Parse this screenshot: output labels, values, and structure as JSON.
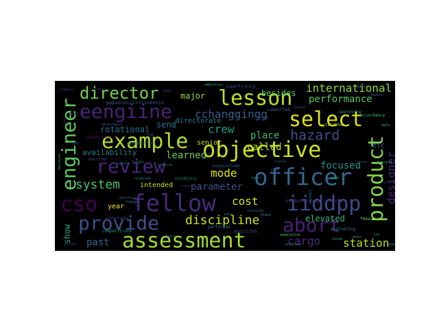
{
  "words": [
    {
      "text": "assessment",
      "color": "#a0da39"
    },
    {
      "text": "objective",
      "color": "#cbe11e"
    },
    {
      "text": "officer",
      "color": "#31678e"
    },
    {
      "text": "fellow",
      "color": "#472a7a"
    },
    {
      "text": "provide",
      "color": "#3b528b"
    },
    {
      "text": "example",
      "color": "#b5de2b"
    },
    {
      "text": "lesson",
      "color": "#c2df23"
    },
    {
      "text": "review",
      "color": "#482878"
    },
    {
      "text": "select",
      "color": "#dde318"
    },
    {
      "text": "eengiine",
      "color": "#482475"
    },
    {
      "text": "engineer",
      "color": "#5ec962"
    },
    {
      "text": "product",
      "color": "#84d44b"
    },
    {
      "text": "abort",
      "color": "#482173"
    },
    {
      "text": "iiddpp",
      "color": "#3e4a89"
    },
    {
      "text": "cso",
      "color": "#440154"
    },
    {
      "text": "director",
      "color": "#75d054"
    },
    {
      "text": "hazard",
      "color": "#3e4c8a"
    },
    {
      "text": "discipline",
      "color": "#c8e020"
    },
    {
      "text": "system",
      "color": "#4ac16d"
    },
    {
      "text": "international",
      "color": "#8fd744"
    },
    {
      "text": "performance",
      "color": "#5ac864"
    },
    {
      "text": "cchanggingg",
      "color": "#355f8d"
    },
    {
      "text": "designer",
      "color": "#482677"
    },
    {
      "text": "cargo",
      "color": "#472d7b"
    },
    {
      "text": "station",
      "color": "#c2df23"
    },
    {
      "text": "mode",
      "color": "#e5e419"
    },
    {
      "text": "focused",
      "color": "#21918c"
    },
    {
      "text": "parameter",
      "color": "#3b528b"
    },
    {
      "text": "cost",
      "color": "#d8e219"
    },
    {
      "text": "crew",
      "color": "#1f9e89"
    },
    {
      "text": "learned",
      "color": "#6ccd5a"
    },
    {
      "text": "availability",
      "color": "#26828e"
    },
    {
      "text": "rotational",
      "color": "#2d708e"
    },
    {
      "text": "place",
      "color": "#3dbc74"
    },
    {
      "text": "called",
      "color": "#b2dd2d"
    },
    {
      "text": "elevated",
      "color": "#3aba76"
    },
    {
      "text": "show",
      "color": "#27ad81"
    },
    {
      "text": "past",
      "color": "#31688e"
    },
    {
      "text": "major",
      "color": "#93d741"
    },
    {
      "text": "besides",
      "color": "#5cc863"
    },
    {
      "text": "send",
      "color": "#2c738e"
    },
    {
      "text": "directorate",
      "color": "#24878e"
    },
    {
      "text": "senior",
      "color": "#d0e11c"
    },
    {
      "text": "intended",
      "color": "#c5e021"
    },
    {
      "text": "year",
      "color": "#fde725"
    },
    {
      "text": "etc",
      "color": "#34618d"
    },
    {
      "text": "mmiitthh",
      "color": "#3f4889"
    },
    {
      "text": "eeqquuiivvaalleenntt",
      "color": "#46327e"
    },
    {
      "text": "performed",
      "color": "#2a768e"
    },
    {
      "text": "pppoossiiittiioonnss",
      "color": "#355e8d"
    },
    {
      "text": "ooperforming",
      "color": "#3a538b"
    },
    {
      "text": "committed",
      "color": "#2e6f8e"
    },
    {
      "text": "approving",
      "color": "#1fa188"
    },
    {
      "text": "accordance",
      "color": "#48c16e"
    },
    {
      "text": "specified",
      "color": "#3b528b"
    },
    {
      "text": "disposition",
      "color": "#2c728e"
    },
    {
      "text": "analyses",
      "color": "#25848e"
    },
    {
      "text": "adaptation",
      "color": "#4ac16d"
    },
    {
      "text": "evaluating",
      "color": "#23898e"
    },
    {
      "text": "material",
      "color": "#31688e"
    },
    {
      "text": "change",
      "color": "#27808e"
    },
    {
      "text": "competitions",
      "color": "#20a486"
    },
    {
      "text": "resulted",
      "color": "#2c738e"
    },
    {
      "text": "suitability",
      "color": "#1f9a8a"
    },
    {
      "text": "government",
      "color": "#3b528b"
    },
    {
      "text": "others",
      "color": "#453781"
    },
    {
      "text": "yiiirhhua",
      "color": "#a8db34"
    },
    {
      "text": "keyyssttemm",
      "color": "#375b8d"
    },
    {
      "text": "ddeessiiggner",
      "color": "#471164"
    },
    {
      "text": "rendered",
      "color": "#24878e"
    },
    {
      "text": "ambitious",
      "color": "#26ad81"
    },
    {
      "text": "fmea",
      "color": "#6ccd5a"
    },
    {
      "text": "waiver",
      "color": "#2d708e"
    },
    {
      "text": "rsk",
      "color": "#1e9b8a"
    },
    {
      "text": "cchhannggee",
      "color": "#3e4989"
    },
    {
      "text": "support",
      "color": "#433e85"
    },
    {
      "text": "build",
      "color": "#38588c"
    },
    {
      "text": "hand",
      "color": "#2a778e"
    },
    {
      "text": "action",
      "color": "#453882"
    },
    {
      "text": "decision",
      "color": "#22a785"
    },
    {
      "text": "lead",
      "color": "#3f4788"
    },
    {
      "text": "status",
      "color": "#2f6b8e"
    },
    {
      "text": "owner",
      "color": "#297a8e"
    },
    {
      "text": "tasks",
      "color": "#1fa088"
    },
    {
      "text": "data",
      "color": "#31b57b"
    },
    {
      "text": "test",
      "color": "#472f7d"
    },
    {
      "text": "flight",
      "color": "#26818e"
    },
    {
      "text": "orbit",
      "color": "#3a548c"
    },
    {
      "text": "vehicle",
      "color": "#20928c"
    },
    {
      "text": "control",
      "color": "#482071"
    },
    {
      "text": "safety",
      "color": "#2c718e"
    },
    {
      "text": "issue",
      "color": "#25ab82"
    },
    {
      "text": "plan",
      "color": "#3b518b"
    },
    {
      "text": "phase",
      "color": "#1f988b"
    },
    {
      "text": "track",
      "color": "#414487"
    },
    {
      "text": "levels",
      "color": "#2a788e"
    },
    {
      "text": "risk",
      "color": "#2e6e8e"
    },
    {
      "text": "deal",
      "color": "#46337f"
    },
    {
      "text": "needs",
      "color": "#1f958b"
    },
    {
      "text": "board",
      "color": "#2d708e"
    },
    {
      "text": "area",
      "color": "#472c7a"
    },
    {
      "text": "team",
      "color": "#28ae80"
    },
    {
      "text": "ops",
      "color": "#3c4f8a"
    },
    {
      "text": "mission",
      "color": "#22a884"
    },
    {
      "text": "unit",
      "color": "#39558c"
    },
    {
      "text": "role",
      "color": "#1e9c89"
    }
  ]
}
